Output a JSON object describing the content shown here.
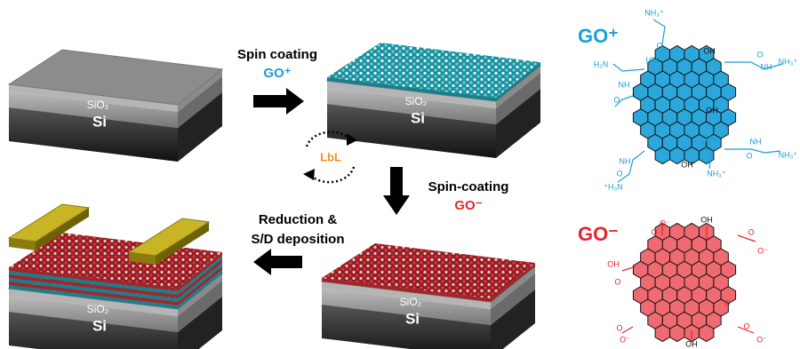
{
  "substrate": {
    "oxide": "SiO₂",
    "silicon": "Si"
  },
  "steps": [
    {
      "label": [
        "Spin coating"
      ],
      "reagent": "GO⁺"
    },
    {
      "label": [
        "Spin-coating"
      ],
      "reagent": "GO⁻"
    },
    {
      "label": [
        "Reduction &",
        "S/D deposition"
      ]
    }
  ],
  "cycle": "LbL",
  "molecules": [
    {
      "title": "GO⁺",
      "groups": [
        "NH₃⁺",
        "O",
        "HN",
        "OH",
        "H₂N",
        "O",
        "NH",
        "NH₃⁺",
        "NH",
        "O",
        "OH",
        "HN",
        "O",
        "NH",
        "NH₃⁺",
        "NH",
        "O",
        "OH",
        "NH₃⁺",
        "⁺H₃N"
      ]
    },
    {
      "title": "GO⁻",
      "groups": [
        "O⁻",
        "O",
        "OH",
        "O",
        "O⁻",
        "OH",
        "O",
        "O",
        "O",
        "O⁻",
        "OH",
        "O",
        "O⁻"
      ]
    }
  ]
}
